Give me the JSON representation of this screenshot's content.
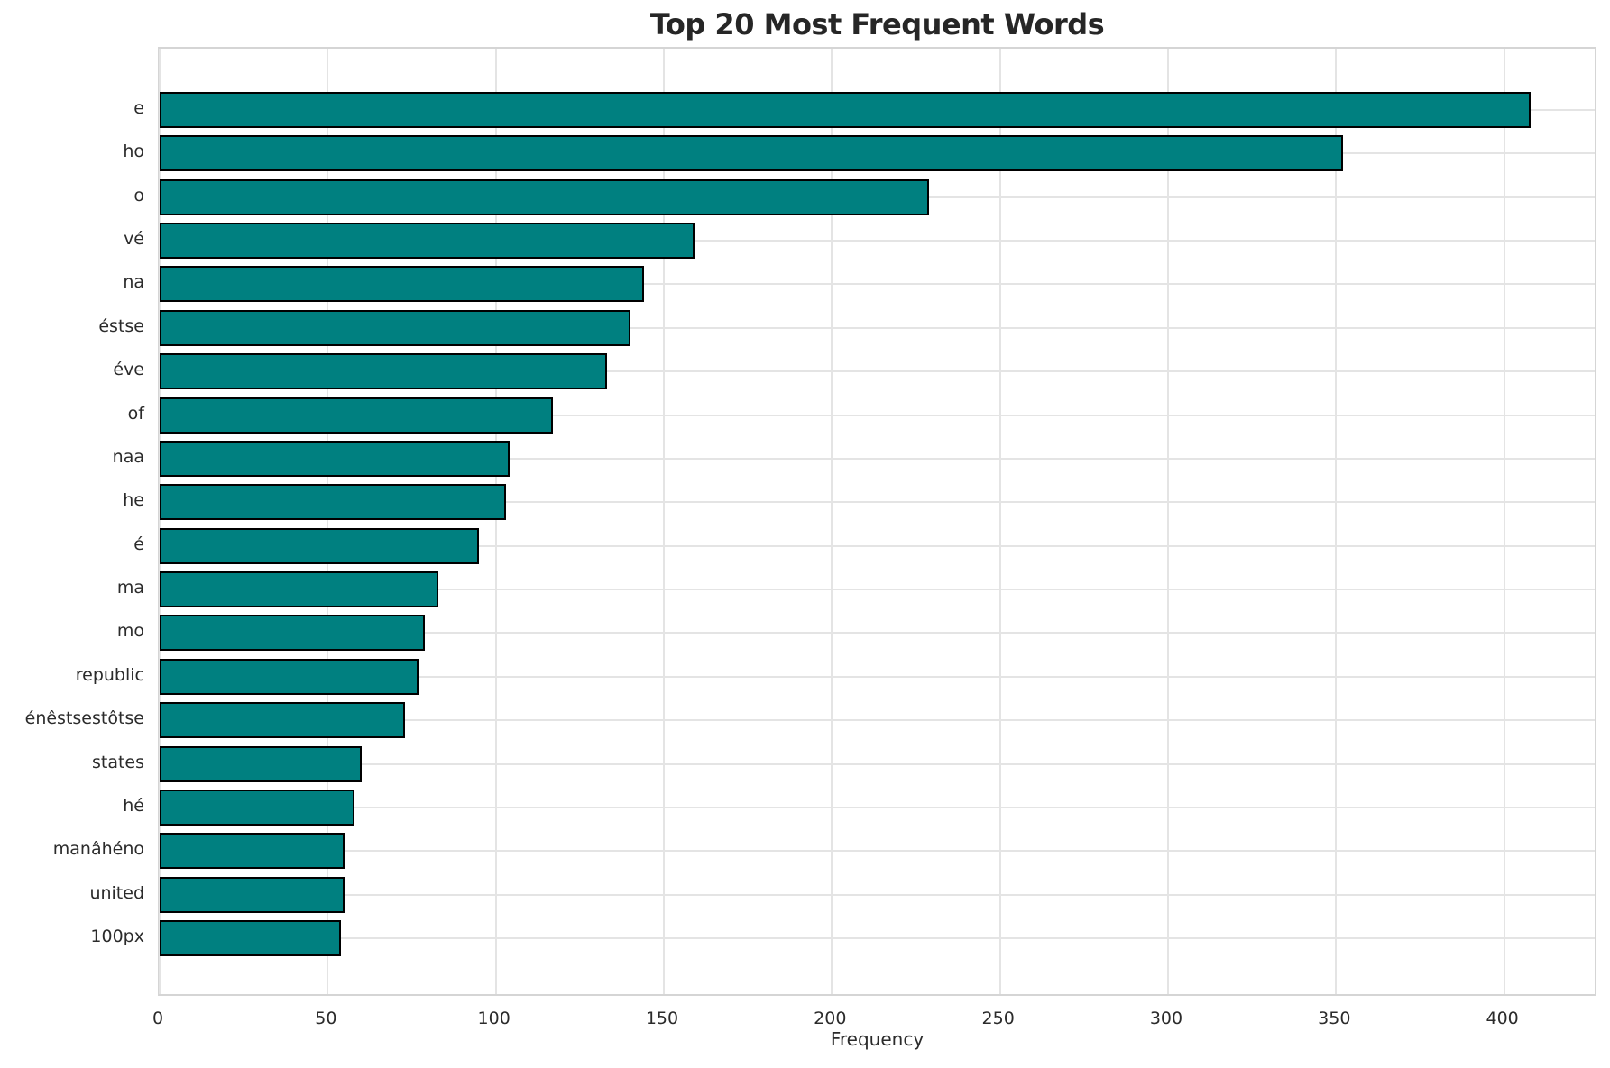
{
  "chart_data": {
    "type": "bar",
    "orientation": "horizontal",
    "title": "Top 20 Most Frequent Words",
    "xlabel": "Frequency",
    "ylabel": "",
    "categories": [
      "e",
      "ho",
      "o",
      "vé",
      "na",
      "éstse",
      "éve",
      "of",
      "naa",
      "he",
      "é",
      "ma",
      "mo",
      "republic",
      "énêstsestôtse",
      "states",
      "hé",
      "manâhéno",
      "united",
      "100px"
    ],
    "values": [
      408,
      352,
      229,
      159,
      144,
      140,
      133,
      117,
      104,
      103,
      95,
      83,
      79,
      77,
      73,
      60,
      58,
      55,
      55,
      54
    ],
    "xticks": [
      0,
      50,
      100,
      150,
      200,
      250,
      300,
      350,
      400
    ],
    "xlim": [
      0,
      428
    ],
    "grid": true,
    "legend": "none",
    "bar_color": "#008080",
    "bar_edge_color": "#000000",
    "grid_color": "#e4e4e4",
    "text_color": "#2b2b2b",
    "title_color": "#262626"
  }
}
